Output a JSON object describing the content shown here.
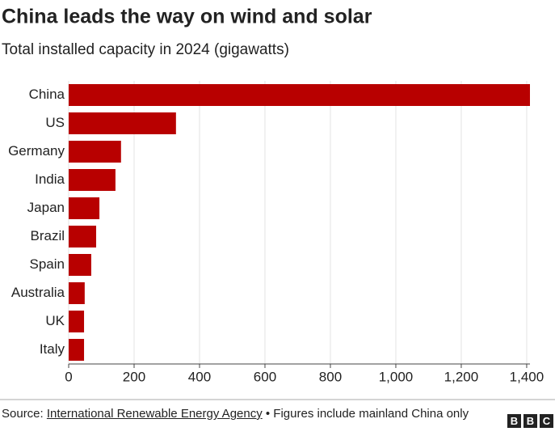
{
  "chart_data": {
    "type": "bar",
    "orientation": "horizontal",
    "title": "China leads the way on wind and solar",
    "subtitle": "Total installed capacity in 2024 (gigawatts)",
    "categories": [
      "China",
      "US",
      "Germany",
      "India",
      "Japan",
      "Brazil",
      "Spain",
      "Australia",
      "UK",
      "Italy"
    ],
    "values": [
      1410,
      328,
      160,
      143,
      94,
      84,
      69,
      49,
      47,
      47
    ],
    "color": "#b80000",
    "xlim": [
      0,
      1410
    ],
    "xticks": [
      0,
      200,
      400,
      600,
      800,
      {
        "value": 1000,
        "label": "1,000"
      },
      {
        "value": 1200,
        "label": "1,200"
      },
      {
        "value": 1400,
        "label": "1,400"
      }
    ],
    "grid": true,
    "source": {
      "label": "Source:",
      "link": "International Renewable Energy Agency",
      "note": "• Figures include mainland China only"
    },
    "logo_letters": [
      "B",
      "B",
      "C"
    ]
  }
}
